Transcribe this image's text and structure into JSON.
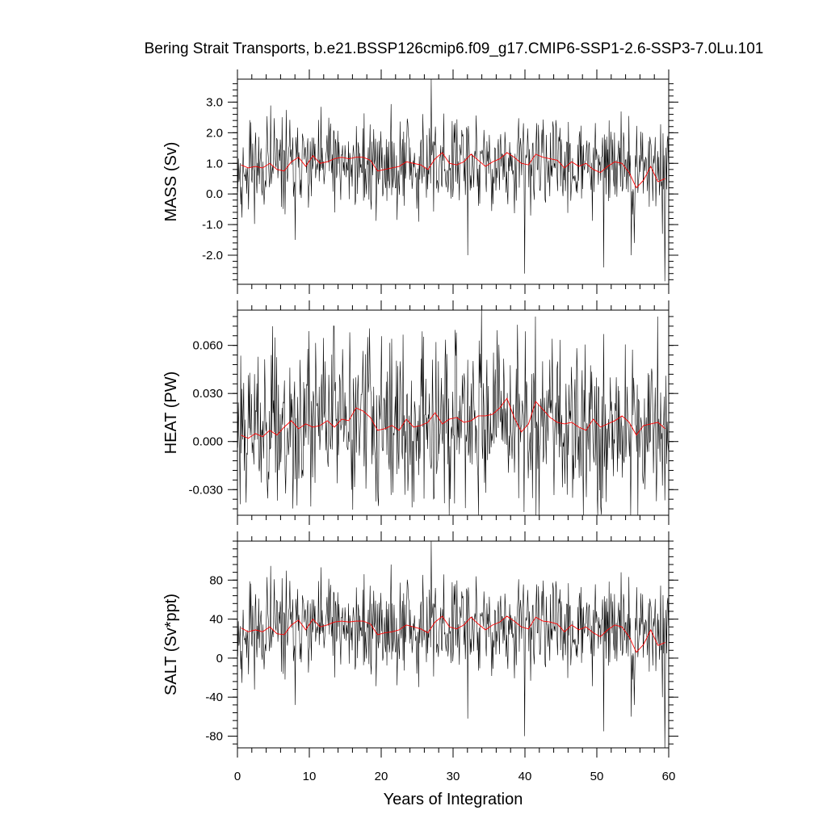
{
  "title": "Bering Strait Transports, b.e21.BSSP126cmip6.f09_g17.CMIP6-SSP1-2.6-SSP3-7.0Lu.101",
  "chart_data": [
    {
      "type": "line",
      "ylabel": "MASS (Sv)",
      "xlim": [
        0,
        60
      ],
      "ylim": [
        -2.95,
        3.75
      ],
      "yticks": [
        3.0,
        2.0,
        1.0,
        0.0,
        -1.0,
        -2.0
      ],
      "ytick_labels": [
        "3.0",
        "2.0",
        "1.0",
        "0.0",
        "-1.0",
        "-2.0"
      ],
      "ytick_minor_step": 0.2,
      "series": [
        {
          "kind": "monthly",
          "color": "#000000",
          "mean": 0.95,
          "amp": 0.55,
          "min": -2.85,
          "max": 3.75,
          "seed": 11,
          "spikes": [
            [
              27.0,
              3.75
            ],
            [
              40.0,
              -2.6
            ],
            [
              59.5,
              -2.85
            ],
            [
              59.1,
              -1.3
            ],
            [
              51.0,
              -2.4
            ],
            [
              32.0,
              -2.0
            ],
            [
              8.0,
              -1.5
            ],
            [
              54.8,
              -2.0
            ],
            [
              55.2,
              -1.6
            ]
          ]
        },
        {
          "kind": "annual",
          "color": "#ff0000",
          "x": [
            0.5,
            1.5,
            2.5,
            3.5,
            4.5,
            5.5,
            6.5,
            7.5,
            8.5,
            9.5,
            10.5,
            11.5,
            12.5,
            13.5,
            14.5,
            15.5,
            16.5,
            17.5,
            18.5,
            19.5,
            20.5,
            21.5,
            22.5,
            23.5,
            24.5,
            25.5,
            26.5,
            27.5,
            28.5,
            29.5,
            30.5,
            31.5,
            32.5,
            33.5,
            34.5,
            35.5,
            36.5,
            37.5,
            38.5,
            39.5,
            40.5,
            41.5,
            42.5,
            43.5,
            44.5,
            45.5,
            46.5,
            47.5,
            48.5,
            49.5,
            50.5,
            51.5,
            52.5,
            53.5,
            54.5,
            55.5,
            56.5,
            57.5,
            58.5,
            59.5
          ],
          "values": [
            0.95,
            0.85,
            0.9,
            0.85,
            1.0,
            0.8,
            0.75,
            1.05,
            1.2,
            0.9,
            1.25,
            1.0,
            1.05,
            1.15,
            1.2,
            1.15,
            1.2,
            1.2,
            1.1,
            0.75,
            0.8,
            0.85,
            0.9,
            1.05,
            1.0,
            0.95,
            0.8,
            1.15,
            1.35,
            1.0,
            0.95,
            1.05,
            1.3,
            1.1,
            0.9,
            1.05,
            1.15,
            1.35,
            1.2,
            1.0,
            0.95,
            1.3,
            1.2,
            1.15,
            1.1,
            0.85,
            1.05,
            0.9,
            1.0,
            0.8,
            0.7,
            0.9,
            1.05,
            1.0,
            0.7,
            0.2,
            0.45,
            0.9,
            0.4,
            0.5
          ]
        }
      ]
    },
    {
      "type": "line",
      "ylabel": "HEAT (PW)",
      "xlim": [
        0,
        60
      ],
      "ylim": [
        -0.046,
        0.082
      ],
      "yticks": [
        0.06,
        0.03,
        0.0,
        -0.03
      ],
      "ytick_labels": [
        "0.060",
        "0.030",
        "0.000",
        "-0.030"
      ],
      "ytick_minor_step": 0.006,
      "series": [
        {
          "kind": "monthly",
          "color": "#000000",
          "mean": 0.011,
          "amp": 0.018,
          "min": -0.046,
          "max": 0.082,
          "seed": 23,
          "spikes": [
            [
              34.0,
              0.082
            ],
            [
              39.9,
              -0.044
            ],
            [
              55.7,
              -0.046
            ],
            [
              58.5,
              0.078
            ],
            [
              13.5,
              0.072
            ],
            [
              30.5,
              0.068
            ],
            [
              41.5,
              0.078
            ]
          ]
        },
        {
          "kind": "annual",
          "color": "#ff0000",
          "x": [
            0.5,
            1.5,
            2.5,
            3.5,
            4.5,
            5.5,
            6.5,
            7.5,
            8.5,
            9.5,
            10.5,
            11.5,
            12.5,
            13.5,
            14.5,
            15.5,
            16.5,
            17.5,
            18.5,
            19.5,
            20.5,
            21.5,
            22.5,
            23.5,
            24.5,
            25.5,
            26.5,
            27.5,
            28.5,
            29.5,
            30.5,
            31.5,
            32.5,
            33.5,
            34.5,
            35.5,
            36.5,
            37.5,
            38.5,
            39.5,
            40.5,
            41.5,
            42.5,
            43.5,
            44.5,
            45.5,
            46.5,
            47.5,
            48.5,
            49.5,
            50.5,
            51.5,
            52.5,
            53.5,
            54.5,
            55.5,
            56.5,
            57.5,
            58.5,
            59.5
          ],
          "values": [
            0.004,
            0.002,
            0.005,
            0.003,
            0.007,
            0.004,
            0.009,
            0.013,
            0.008,
            0.011,
            0.009,
            0.01,
            0.013,
            0.009,
            0.014,
            0.013,
            0.021,
            0.019,
            0.015,
            0.007,
            0.008,
            0.01,
            0.007,
            0.014,
            0.009,
            0.01,
            0.012,
            0.018,
            0.011,
            0.014,
            0.015,
            0.012,
            0.013,
            0.016,
            0.016,
            0.017,
            0.021,
            0.027,
            0.015,
            0.006,
            0.011,
            0.025,
            0.02,
            0.015,
            0.012,
            0.011,
            0.012,
            0.009,
            0.007,
            0.014,
            0.009,
            0.011,
            0.013,
            0.016,
            0.012,
            0.004,
            0.01,
            0.011,
            0.012,
            0.008
          ]
        }
      ]
    },
    {
      "type": "line",
      "ylabel": "SALT (Sv*ppt)",
      "xlim": [
        0,
        60
      ],
      "ylim": [
        -92,
        120
      ],
      "yticks": [
        80,
        40,
        0,
        -40,
        -80
      ],
      "ytick_labels": [
        "80",
        "40",
        "0",
        "-40",
        "-80"
      ],
      "ytick_minor_step": 8,
      "series": [
        {
          "kind": "monthly",
          "color": "#000000",
          "mean": 31,
          "amp": 18,
          "min": -92,
          "max": 120,
          "seed": 11,
          "spikes": [
            [
              27.0,
              120
            ],
            [
              40.0,
              -80
            ],
            [
              59.5,
              -92
            ],
            [
              59.1,
              -40
            ],
            [
              51.0,
              -75
            ],
            [
              32.0,
              -62
            ],
            [
              8.0,
              -48
            ],
            [
              54.8,
              -60
            ],
            [
              55.2,
              -48
            ]
          ]
        },
        {
          "kind": "annual",
          "color": "#ff0000",
          "x": [
            0.5,
            1.5,
            2.5,
            3.5,
            4.5,
            5.5,
            6.5,
            7.5,
            8.5,
            9.5,
            10.5,
            11.5,
            12.5,
            13.5,
            14.5,
            15.5,
            16.5,
            17.5,
            18.5,
            19.5,
            20.5,
            21.5,
            22.5,
            23.5,
            24.5,
            25.5,
            26.5,
            27.5,
            28.5,
            29.5,
            30.5,
            31.5,
            32.5,
            33.5,
            34.5,
            35.5,
            36.5,
            37.5,
            38.5,
            39.5,
            40.5,
            41.5,
            42.5,
            43.5,
            44.5,
            45.5,
            46.5,
            47.5,
            48.5,
            49.5,
            50.5,
            51.5,
            52.5,
            53.5,
            54.5,
            55.5,
            56.5,
            57.5,
            58.5,
            59.5
          ],
          "values": [
            31,
            27,
            29,
            27,
            32,
            25,
            24,
            34,
            39,
            29,
            40,
            32,
            34,
            37,
            38,
            37,
            38,
            38,
            35,
            24,
            26,
            27,
            29,
            34,
            32,
            30,
            26,
            37,
            43,
            32,
            30,
            34,
            42,
            35,
            29,
            34,
            37,
            43,
            38,
            32,
            30,
            42,
            38,
            37,
            35,
            27,
            34,
            29,
            32,
            26,
            22,
            29,
            34,
            32,
            22,
            6,
            14,
            29,
            13,
            16
          ]
        }
      ]
    }
  ],
  "xaxis": {
    "label": "Years of Integration",
    "ticks": [
      0,
      10,
      20,
      30,
      40,
      50,
      60
    ],
    "tick_labels": [
      "0",
      "10",
      "20",
      "30",
      "40",
      "50",
      "60"
    ]
  }
}
